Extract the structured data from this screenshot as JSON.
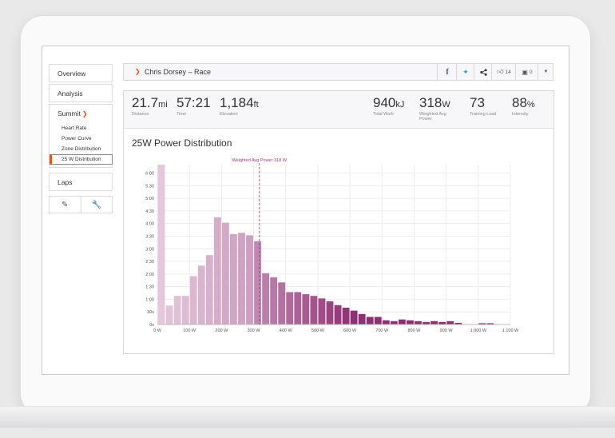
{
  "activity": {
    "athlete_title": "Chris Dorsey – Race"
  },
  "social": {
    "kudos_count": "14",
    "comment_count": "0"
  },
  "sidebar": {
    "overview": "Overview",
    "analysis": "Analysis",
    "summit": "Summit",
    "summit_items": [
      "Heart Rate",
      "Power Curve",
      "Zone Distribution",
      "25 W Distribution"
    ],
    "laps": "Laps"
  },
  "stats": [
    {
      "value": "21.7",
      "unit": "mi",
      "label": "Distance"
    },
    {
      "value": "57:21",
      "unit": "",
      "label": "Time"
    },
    {
      "value": "1,184",
      "unit": "ft",
      "label": "Elevation"
    },
    {
      "value": "940",
      "unit": "kJ",
      "label": "Total Work"
    },
    {
      "value": "318",
      "unit": "W",
      "label": "Weighted Avg Power"
    },
    {
      "value": "73",
      "unit": "",
      "label": "Training Load"
    },
    {
      "value": "88",
      "unit": "%",
      "label": "Intensity"
    }
  ],
  "colors": {
    "brand": "#fc4c02",
    "bar_light": "#e8cfe0",
    "bar_dark": "#8e2f73",
    "marker": "#a3367c"
  },
  "chart_data": {
    "type": "bar",
    "title": "25W Power Distribution",
    "xlabel": "",
    "ylabel": "",
    "bin_width_w": 25,
    "x_ticks": [
      "0 W",
      "100 W",
      "200 W",
      "300 W",
      "400 W",
      "500 W",
      "600 W",
      "700 W",
      "800 W",
      "900 W",
      "1,000 W",
      "1,100 W"
    ],
    "y_ticks": [
      "0s",
      "30s",
      "1:00",
      "1:30",
      "2:00",
      "2:30",
      "3:00",
      "3:30",
      "4:00",
      "4:30",
      "5:00",
      "5:30",
      "6:00"
    ],
    "xlim": [
      0,
      1100
    ],
    "ylim_seconds": [
      0,
      380
    ],
    "bin_starts_w": [
      0,
      25,
      50,
      75,
      100,
      125,
      150,
      175,
      200,
      225,
      250,
      275,
      300,
      325,
      350,
      375,
      400,
      425,
      450,
      475,
      500,
      525,
      550,
      575,
      600,
      625,
      650,
      675,
      700,
      725,
      750,
      775,
      800,
      825,
      850,
      875,
      900,
      925,
      950,
      975,
      1000,
      1025,
      1050,
      1075
    ],
    "values_seconds": [
      380,
      45,
      68,
      68,
      115,
      140,
      165,
      255,
      242,
      215,
      218,
      212,
      198,
      122,
      112,
      100,
      77,
      77,
      72,
      68,
      62,
      55,
      46,
      40,
      33,
      25,
      18,
      18,
      10,
      8,
      12,
      10,
      8,
      6,
      8,
      6,
      8,
      4,
      0,
      0,
      3,
      3,
      0,
      0
    ],
    "reference_line": {
      "label": "Weighted Avg Power 318 W",
      "value_w": 318
    }
  }
}
